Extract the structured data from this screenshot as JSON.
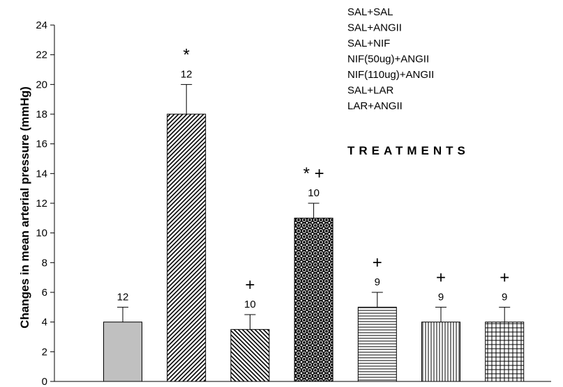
{
  "chart_data": {
    "type": "bar",
    "ylabel": "Changes in mean arterial pressure (mmHg)",
    "xlabel": "",
    "ylim": [
      0,
      24
    ],
    "yticks": [
      0,
      2,
      4,
      6,
      8,
      10,
      12,
      14,
      16,
      18,
      20,
      22,
      24
    ],
    "categories": [
      "SAL+SAL",
      "SAL+ANGII",
      "SAL+NIF",
      "NIF(50ug)+ANGII",
      "NIF(110ug)+ANGII",
      "SAL+LAR",
      "LAR+ANGII"
    ],
    "values": [
      4,
      18,
      3.5,
      11,
      5,
      4,
      4
    ],
    "errors": [
      1,
      2,
      1,
      1,
      1,
      1,
      1
    ],
    "n_labels": [
      "12",
      "12",
      "10",
      "10",
      "9",
      "9",
      "9"
    ],
    "significance": [
      "",
      "*",
      "+",
      "* +",
      "+",
      "+",
      "+"
    ],
    "fills": [
      "solid-gray",
      "diag-up",
      "diag-down",
      "circles-dark",
      "horizontal",
      "vertical",
      "grid"
    ],
    "legend": {
      "entries": [
        "SAL+SAL",
        "SAL+ANGII",
        "SAL+NIF",
        "NIF(50ug)+ANGII",
        "NIF(110ug)+ANGII",
        "SAL+LAR",
        "LAR+ANGII"
      ],
      "title": "TREATMENTS",
      "placement": "top-right"
    },
    "grid": false
  }
}
